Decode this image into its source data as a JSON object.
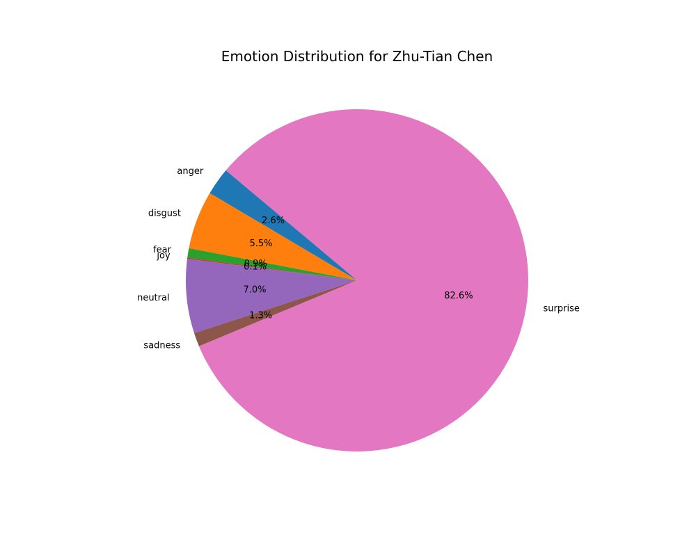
{
  "chart_data": {
    "type": "pie",
    "title": "Emotion Distribution for Zhu-Tian Chen",
    "labels": [
      "anger",
      "disgust",
      "fear",
      "joy",
      "neutral",
      "sadness",
      "surprise"
    ],
    "values": [
      2.6,
      5.5,
      0.9,
      0.1,
      7.0,
      1.3,
      82.6
    ],
    "percent_labels": [
      "2.6%",
      "5.5%",
      "0.9%",
      "0.1%",
      "7.0%",
      "1.3%",
      "82.6%"
    ],
    "colors": [
      "#1f77b4",
      "#ff7f0e",
      "#2ca02c",
      "#d62728",
      "#9467bd",
      "#8c564b",
      "#e377c2"
    ],
    "start_angle_deg": 140,
    "direction": "counterclockwise",
    "legend": "none"
  }
}
